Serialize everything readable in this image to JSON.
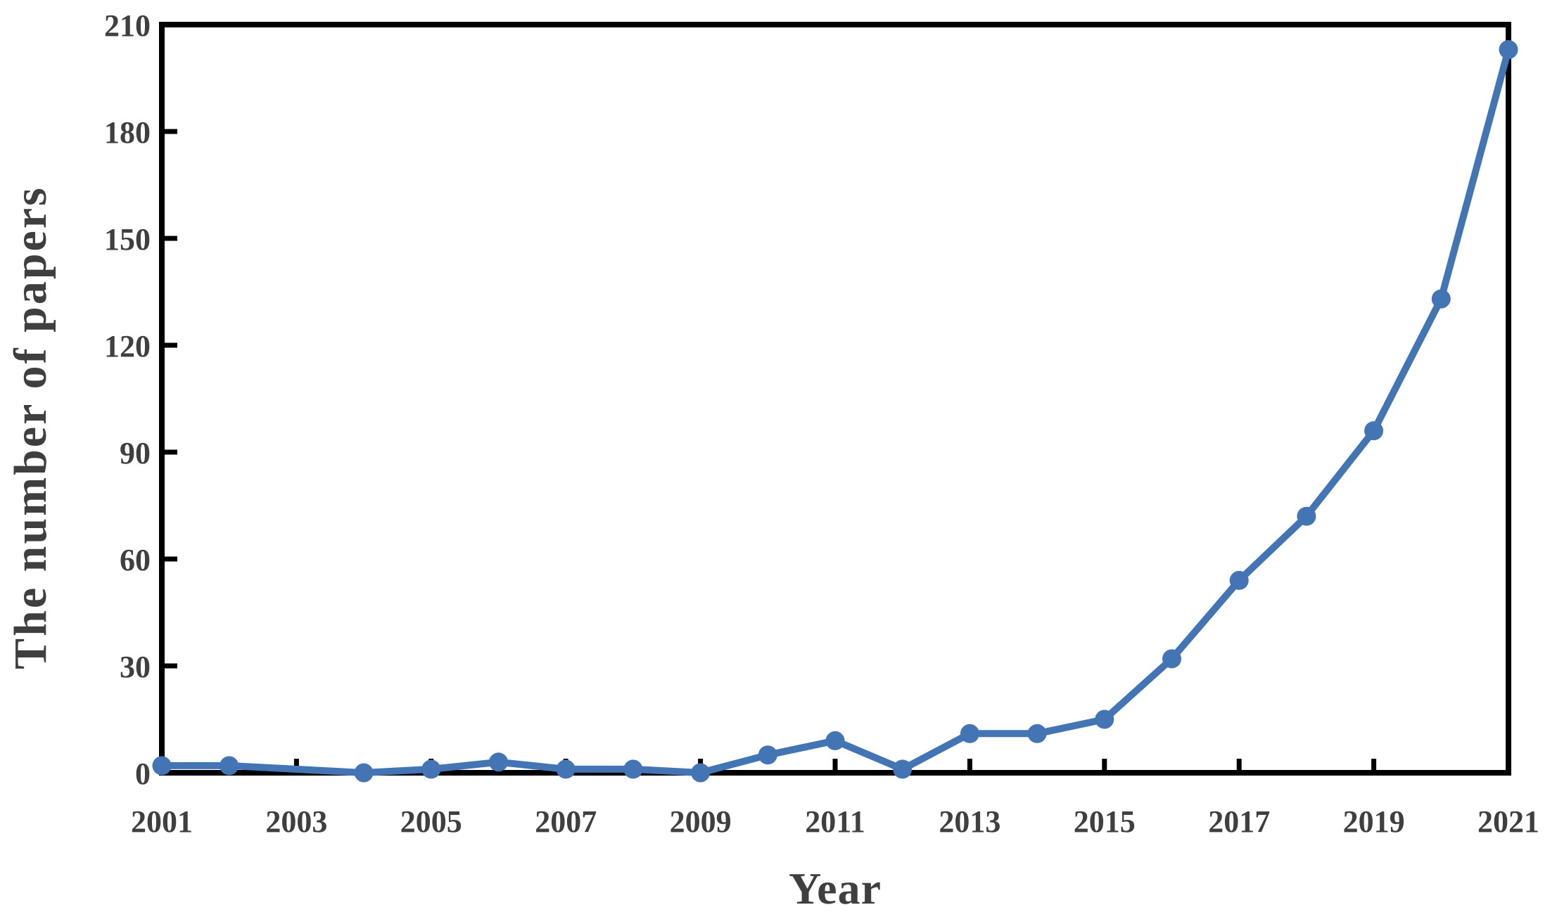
{
  "figure": {
    "background": "#ffffff"
  },
  "chart_data": {
    "type": "line",
    "title": "",
    "xlabel": "Year",
    "ylabel": "The number of papers",
    "x": [
      2001,
      2002,
      2003,
      2004,
      2005,
      2006,
      2007,
      2008,
      2009,
      2010,
      2011,
      2012,
      2013,
      2014,
      2015,
      2016,
      2017,
      2018,
      2019,
      2020,
      2021
    ],
    "series": [
      {
        "name": "The number of papers",
        "values": [
          2,
          2,
          null,
          0,
          1,
          3,
          1,
          1,
          0,
          5,
          9,
          1,
          11,
          11,
          15,
          32,
          54,
          72,
          96,
          133,
          203
        ]
      }
    ],
    "missing_marker_years": [
      2003
    ],
    "y_ticks": [
      0,
      30,
      60,
      90,
      120,
      150,
      180,
      210
    ],
    "x_tick_years": [
      2001,
      2003,
      2005,
      2007,
      2009,
      2011,
      2013,
      2015,
      2017,
      2019,
      2021
    ],
    "x_tick_labels": [
      "2001",
      "2003",
      "2005",
      "2007",
      "2009",
      "2011",
      "2013",
      "2015",
      "2017",
      "2019",
      "2021"
    ],
    "xlim": [
      2001,
      2021
    ],
    "ylim": [
      0,
      210
    ],
    "grid": false,
    "legend": "none",
    "plot_border": "box",
    "tick_direction": "in",
    "line_color": "#4374b4",
    "marker_color": "#4374b4",
    "marker": "circle",
    "axis_color": "#000000",
    "tick_label_color": "#3f3f3f",
    "axis_title_color": "#3f3f3f"
  }
}
